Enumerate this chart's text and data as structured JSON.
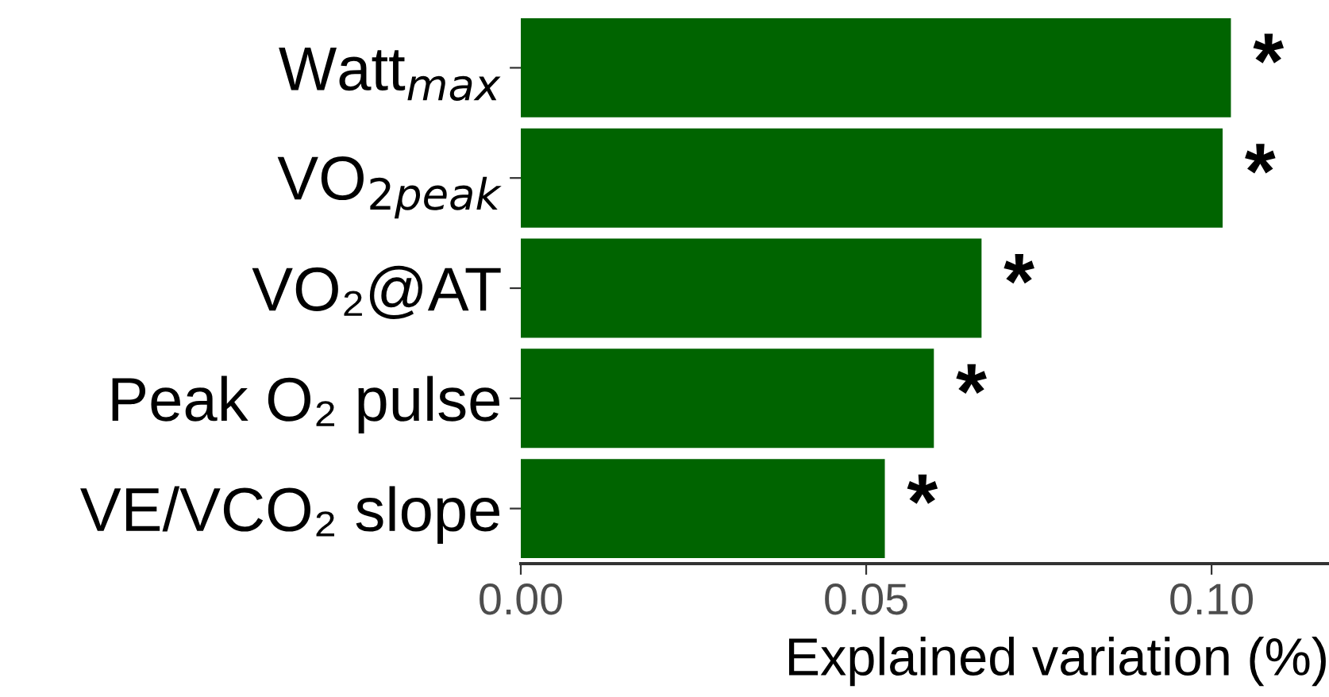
{
  "chart_data": {
    "type": "bar",
    "orientation": "horizontal",
    "xlabel": "Explained variation (%)",
    "categories": [
      "Watt$_{max}$",
      "VO$_{2peak}$",
      "VO₂@AT",
      "Peak O₂ pulse",
      "VE/VCO₂ slope"
    ],
    "values": [
      0.1028,
      0.1016,
      0.0667,
      0.0598,
      0.0527
    ],
    "value_labels": [
      "*",
      "*",
      "*",
      "*",
      "*"
    ],
    "color": "#006400",
    "xlim": [
      0,
      0.117
    ],
    "xticks": [
      {
        "value": 0,
        "label": "0.00"
      },
      {
        "value": 0.05,
        "label": "0.05"
      },
      {
        "value": 0.1,
        "label": "0.10"
      }
    ],
    "grid": false,
    "legend": false
  }
}
